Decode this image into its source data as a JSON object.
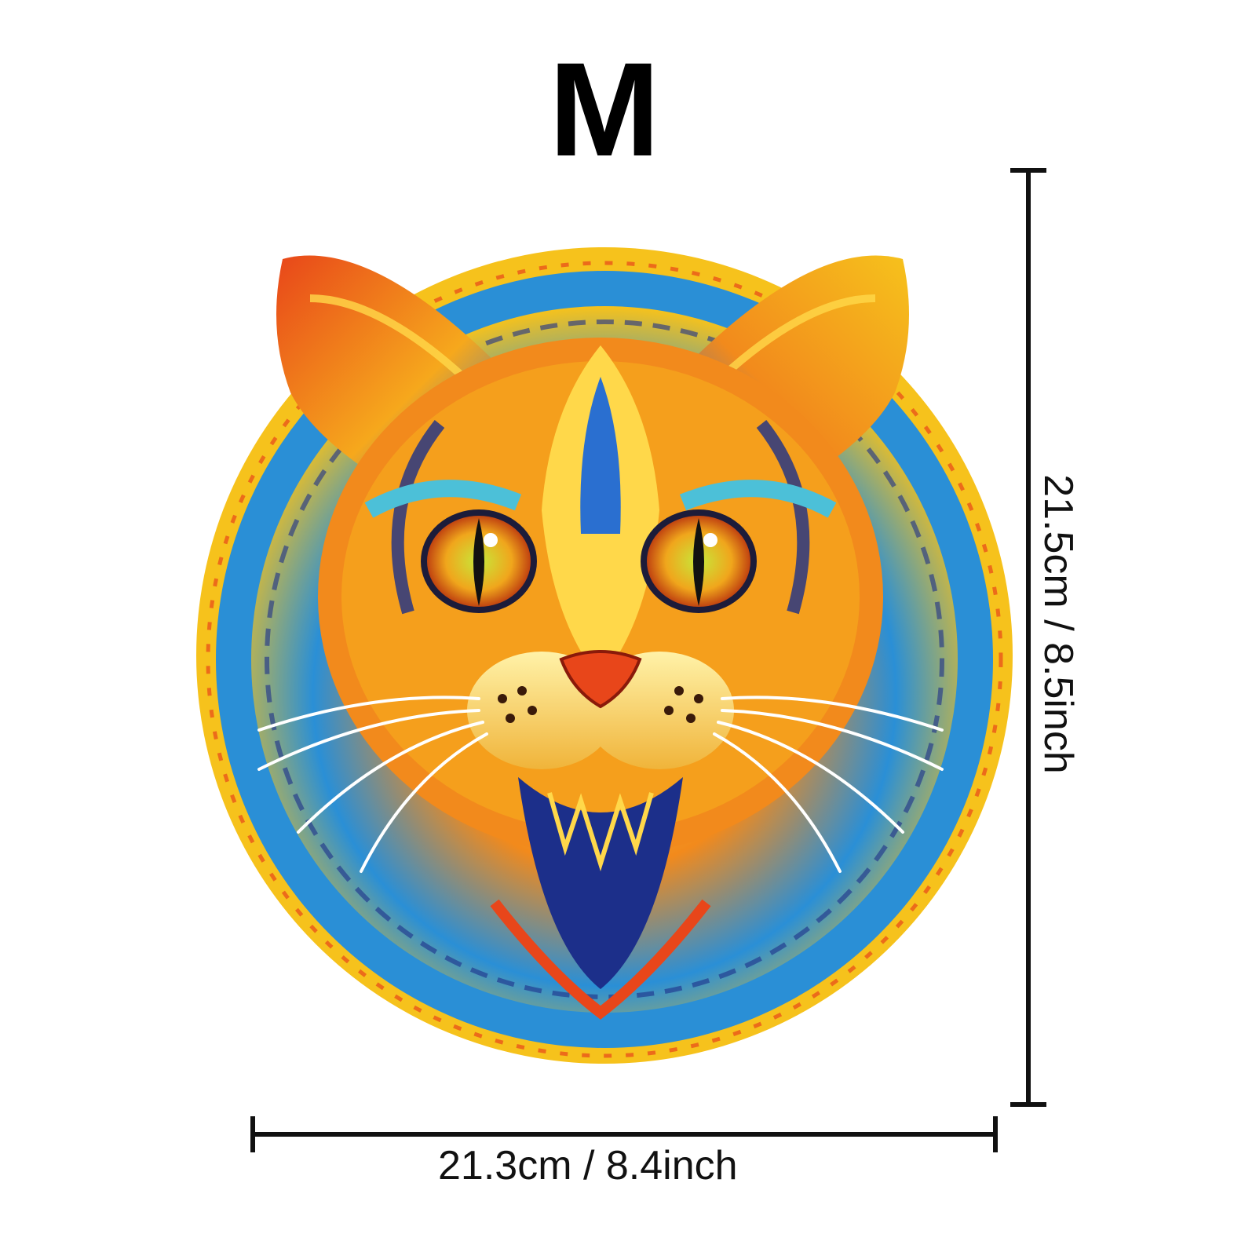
{
  "size_label": "M",
  "width_label": "21.3cm / 8.4inch",
  "height_label": "21.5cm / 8.5inch",
  "product": {
    "subject": "cat-face-jigsaw-puzzle",
    "palette": [
      "#e8461a",
      "#f6a81c",
      "#ffd84a",
      "#2a8fd6",
      "#1c2f8a",
      "#4cc0d8",
      "#c91e1a"
    ]
  }
}
